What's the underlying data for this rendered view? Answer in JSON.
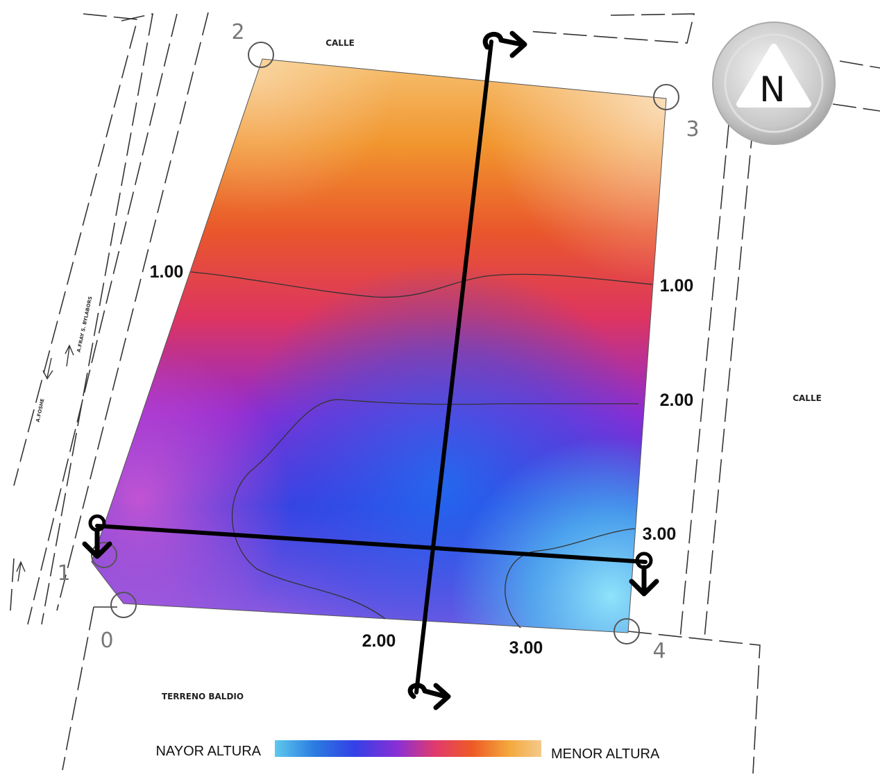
{
  "streets": {
    "top": "CALLE",
    "right": "CALLE",
    "bottom": "TERRENO BALDIO",
    "left_a": "A.FRAY S. BYLABORS",
    "left_b": "A.FOSHE"
  },
  "compass": {
    "letter": "N"
  },
  "vertices": [
    {
      "label": "0"
    },
    {
      "label": "1"
    },
    {
      "label": "2"
    },
    {
      "label": "3"
    },
    {
      "label": "4"
    }
  ],
  "contours": {
    "left_1": "1.00",
    "right_1": "1.00",
    "right_2": "2.00",
    "right_3": "3.00",
    "bottom_2": "2.00",
    "bottom_3": "3.00"
  },
  "legend": {
    "left_label": "NAYOR ALTURA",
    "right_label": "MENOR ALTURA",
    "colors": [
      "#5ec8ee",
      "#2a7be0",
      "#3340e6",
      "#8a2fd6",
      "#e03a6e",
      "#ee5a25",
      "#f3a93d",
      "#f5c98a"
    ]
  }
}
